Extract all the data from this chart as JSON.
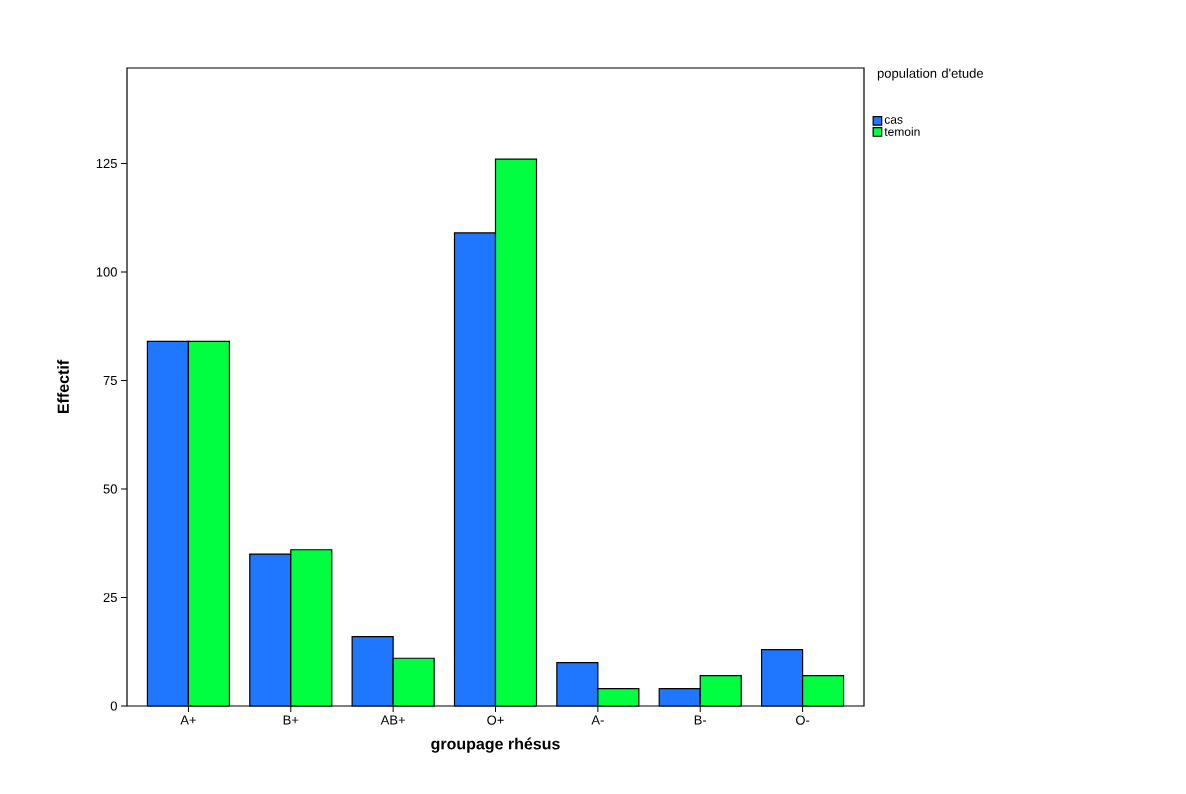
{
  "chart_data": {
    "type": "bar",
    "xlabel": "groupage rhésus",
    "ylabel": "Effectif",
    "legend_title": "population d'etude",
    "categories": [
      "A+",
      "B+",
      "AB+",
      "O+",
      "A-",
      "B-",
      "O-"
    ],
    "series": [
      {
        "name": "cas",
        "color": "#1f77ff",
        "values": [
          84,
          35,
          16,
          109,
          10,
          4,
          13
        ]
      },
      {
        "name": "temoin",
        "color": "#00ff40",
        "values": [
          84,
          36,
          11,
          126,
          4,
          7,
          7
        ]
      }
    ],
    "ylim": [
      0,
      147
    ],
    "yticks": [
      0,
      25,
      50,
      75,
      100,
      125
    ],
    "legend": "top right",
    "grid": false
  }
}
